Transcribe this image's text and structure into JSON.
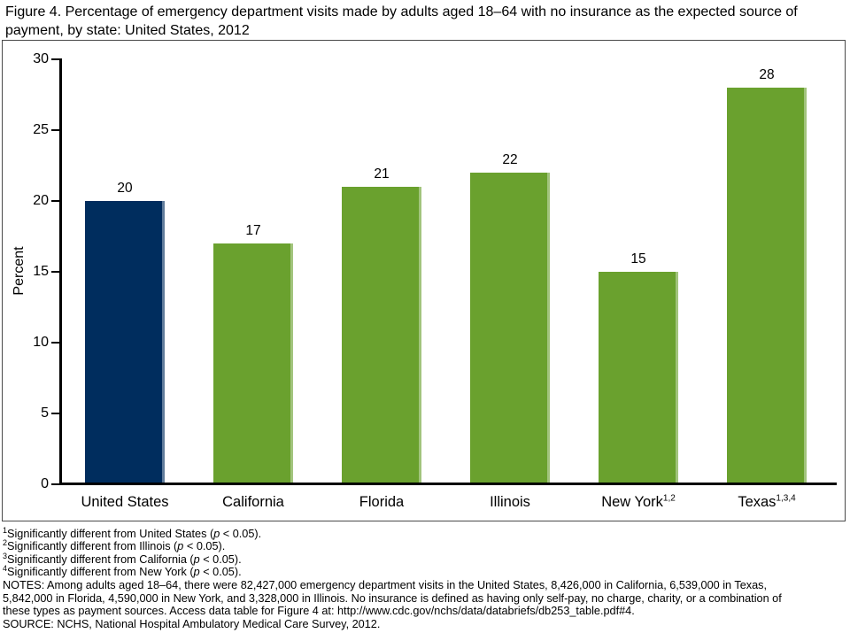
{
  "figure": {
    "title": "Figure 4. Percentage of emergency department visits made by adults aged 18–64 with no insurance as the expected source of payment, by state: United States, 2012"
  },
  "chart_data": {
    "type": "bar",
    "title": "Percentage of emergency department visits made by adults aged 18–64 with no insurance as the expected source of payment, by state: United States, 2012",
    "categories": [
      "United States",
      "California",
      "Florida",
      "Illinois",
      "New York",
      "Texas"
    ],
    "category_superscripts": [
      "",
      "",
      "",
      "",
      "1,2",
      "1,3,4"
    ],
    "values": [
      20,
      17,
      21,
      22,
      15,
      28
    ],
    "value_labels": [
      "20",
      "17",
      "21",
      "22",
      "15",
      "28"
    ],
    "bar_colors": [
      "#002d5e",
      "#6aa12e",
      "#6aa12e",
      "#6aa12e",
      "#6aa12e",
      "#6aa12e"
    ],
    "xlabel": "",
    "ylabel": "Percent",
    "ylim": [
      0,
      30
    ],
    "yticks": [
      0,
      5,
      10,
      15,
      20,
      25,
      30
    ],
    "grid": false,
    "legend": "none"
  },
  "footnotes": [
    {
      "marker": "1",
      "before": "Significantly different from United States (",
      "italic": "p",
      "after": " < 0.05)."
    },
    {
      "marker": "2",
      "before": "Significantly different from Illinois (",
      "italic": "p",
      "after": " < 0.05)."
    },
    {
      "marker": "3",
      "before": "Significantly different from California (",
      "italic": "p",
      "after": " < 0.05)."
    },
    {
      "marker": "4",
      "before": "Significantly different from New York (",
      "italic": "p",
      "after": " < 0.05)."
    }
  ],
  "notes": {
    "lines": [
      "NOTES: Among adults aged 18–64, there were 82,427,000 emergency department visits in the United States, 8,426,000 in California, 6,539,000 in Texas,",
      "5,842,000 in Florida, 4,590,000 in New York, and 3,328,000 in Illinois. No insurance is defined as having only self-pay, no charge, charity, or a combination of",
      "these types as payment sources. Access data table for Figure 4 at: http://www.cdc.gov/nchs/data/databriefs/db253_table.pdf#4."
    ],
    "source": "SOURCE: NCHS, National Hospital Ambulatory Medical Care Survey, 2012."
  },
  "colors": {
    "us_bar": "#002d5e",
    "state_bar": "#6aa12e",
    "axis": "#000000",
    "chart_border": "#4a4a4a",
    "text": "#000000"
  }
}
